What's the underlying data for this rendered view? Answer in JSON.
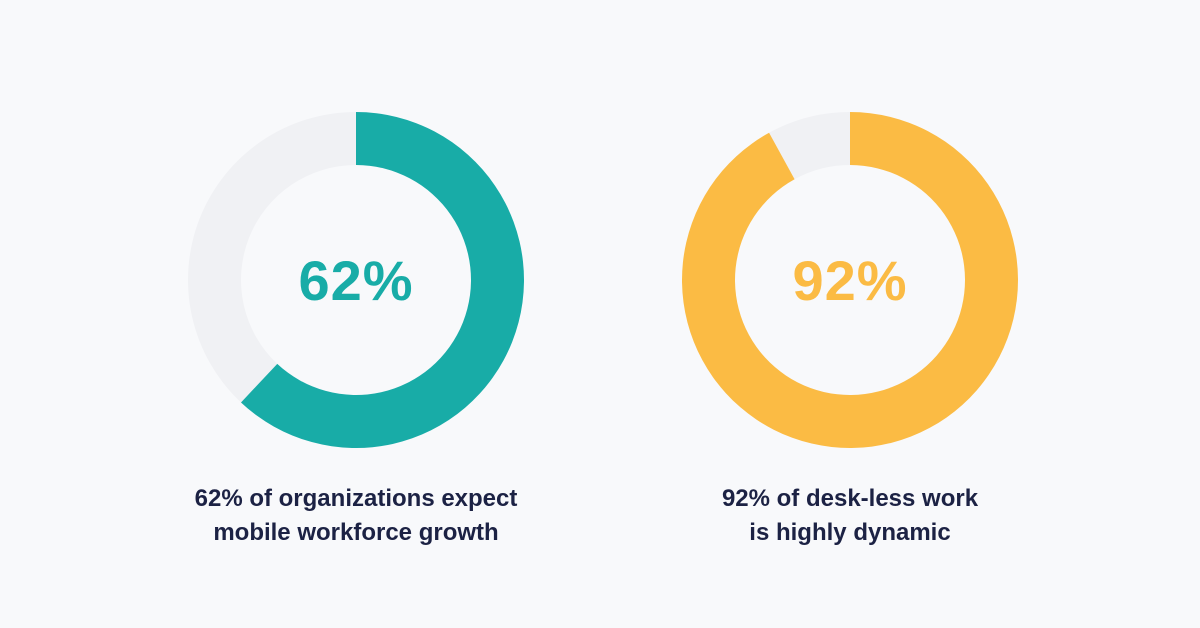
{
  "chart_data": [
    {
      "type": "pie",
      "variant": "donut",
      "center_label": "62%",
      "caption_line1": "62% of organizations expect",
      "caption_line2": "mobile workforce growth",
      "value": 62,
      "remainder": 38,
      "colors": {
        "filled": "#18aca7",
        "track": "#f0f1f4"
      }
    },
    {
      "type": "pie",
      "variant": "donut",
      "center_label": "92%",
      "caption_line1": "92% of desk-less work",
      "caption_line2": "is highly dynamic",
      "value": 92,
      "remainder": 8,
      "colors": {
        "filled": "#fbbb44",
        "track": "#f0f1f4"
      }
    }
  ],
  "colors": {
    "background": "#f8f9fb",
    "caption_text": "#1c2244"
  }
}
